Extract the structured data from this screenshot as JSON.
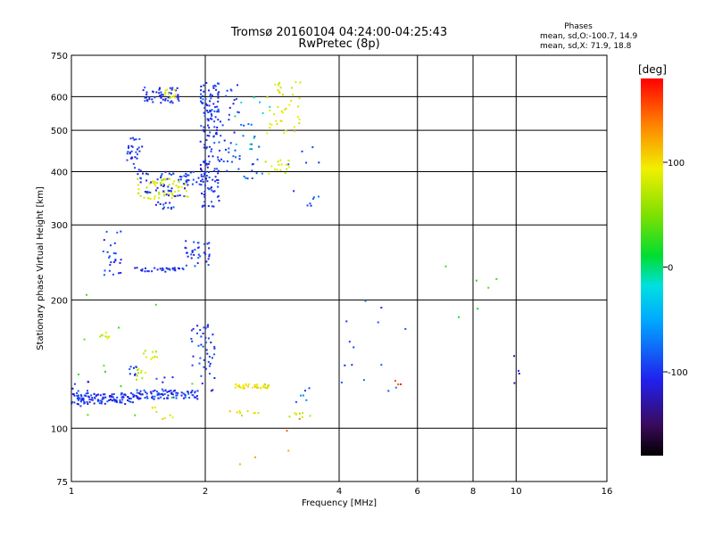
{
  "title_line1": "Tromsø 20160104 04:24:00-04:25:43",
  "title_line2": "RwPretec (8p)",
  "stats": {
    "heading": "Phases",
    "o_line": "mean, sd,O:-100.7, 14.9",
    "x_line": "mean, sd,X:  71.9, 18.8"
  },
  "chart_data": {
    "type": "scatter",
    "xlabel": "Frequency [MHz]",
    "ylabel": "Stationary phase Virtual Height [km]",
    "xscale": "log",
    "yscale": "log",
    "xlim": [
      1,
      16
    ],
    "ylim": [
      75,
      750
    ],
    "x_ticks": [
      {
        "value": 1,
        "label": "1"
      },
      {
        "value": 2,
        "label": "2"
      },
      {
        "value": 4,
        "label": "4"
      },
      {
        "value": 6,
        "label": "6"
      },
      {
        "value": 8,
        "label": "8"
      },
      {
        "value": 10,
        "label": "10"
      },
      {
        "value": 16,
        "label": "16"
      }
    ],
    "y_ticks": [
      {
        "value": 75,
        "label": "75"
      },
      {
        "value": 100,
        "label": "100"
      },
      {
        "value": 200,
        "label": "200"
      },
      {
        "value": 300,
        "label": "300"
      },
      {
        "value": 400,
        "label": "400"
      },
      {
        "value": 500,
        "label": "500"
      },
      {
        "value": 600,
        "label": "600"
      },
      {
        "value": 750,
        "label": "750"
      }
    ],
    "grid": true,
    "colorbar": {
      "label": "[deg]",
      "range": [
        -180,
        180
      ],
      "ticks": [
        {
          "value": 100,
          "label": "100"
        },
        {
          "value": 0,
          "label": "0"
        },
        {
          "value": -100,
          "label": "-100"
        }
      ]
    },
    "clusters": [
      {
        "f": [
          1.0,
          1.38
        ],
        "h": [
          114,
          121
        ],
        "phase": -100,
        "n": 110
      },
      {
        "f": [
          1.38,
          1.95
        ],
        "h": [
          117,
          123
        ],
        "phase": -100,
        "n": 90
      },
      {
        "f": [
          1.85,
          2.1
        ],
        "h": [
          122,
          175
        ],
        "phase": -100,
        "n": 45
      },
      {
        "f": [
          1.0,
          1.1
        ],
        "h": [
          112,
          130
        ],
        "phase": -100,
        "n": 15
      },
      {
        "f": [
          1.15,
          1.22
        ],
        "h": [
          162,
          168
        ],
        "phase": 75,
        "n": 8
      },
      {
        "f": [
          1.38,
          1.47
        ],
        "h": [
          130,
          138
        ],
        "phase": 70,
        "n": 10
      },
      {
        "f": [
          1.45,
          1.58
        ],
        "h": [
          145,
          152
        ],
        "phase": 80,
        "n": 10
      },
      {
        "f": [
          1.35,
          1.4
        ],
        "h": [
          133,
          140
        ],
        "phase": -95,
        "n": 8
      },
      {
        "f": [
          1.55,
          1.7
        ],
        "h": [
          120,
          132
        ],
        "phase": -100,
        "n": 10
      },
      {
        "f": [
          1.5,
          1.7
        ],
        "h": [
          105,
          112
        ],
        "phase": 90,
        "n": 8
      },
      {
        "f": [
          2.3,
          2.8
        ],
        "h": [
          124,
          127
        ],
        "phase": 95,
        "n": 35
      },
      {
        "f": [
          2.35,
          2.7
        ],
        "h": [
          106,
          110
        ],
        "phase": 90,
        "n": 8
      },
      {
        "f": [
          3.0,
          3.5
        ],
        "h": [
          106,
          110
        ],
        "phase": 85,
        "n": 8
      },
      {
        "f": [
          3.2,
          3.45
        ],
        "h": [
          115,
          125
        ],
        "phase": -80,
        "n": 6
      },
      {
        "f": [
          1.18,
          1.3
        ],
        "h": [
          228,
          290
        ],
        "phase": -100,
        "n": 25
      },
      {
        "f": [
          1.35,
          1.8
        ],
        "h": [
          233,
          238
        ],
        "phase": -100,
        "n": 30
      },
      {
        "f": [
          1.8,
          2.05
        ],
        "h": [
          240,
          275
        ],
        "phase": -100,
        "n": 35
      },
      {
        "f": [
          1.33,
          1.45
        ],
        "h": [
          400,
          480
        ],
        "phase": -100,
        "n": 30
      },
      {
        "f": [
          1.4,
          1.85
        ],
        "h": [
          345,
          385
        ],
        "phase": 85,
        "n": 60
      },
      {
        "f": [
          1.4,
          1.85
        ],
        "h": [
          350,
          400
        ],
        "phase": -100,
        "n": 50
      },
      {
        "f": [
          1.55,
          1.7
        ],
        "h": [
          325,
          340
        ],
        "phase": -100,
        "n": 12
      },
      {
        "f": [
          1.75,
          2.0
        ],
        "h": [
          370,
          400
        ],
        "phase": -100,
        "n": 20
      },
      {
        "f": [
          1.45,
          1.75
        ],
        "h": [
          580,
          630
        ],
        "phase": -100,
        "n": 50
      },
      {
        "f": [
          1.58,
          1.72
        ],
        "h": [
          595,
          625
        ],
        "phase": 85,
        "n": 12
      },
      {
        "f": [
          1.95,
          2.15
        ],
        "h": [
          330,
          650
        ],
        "phase": -100,
        "n": 160
      },
      {
        "f": [
          2.15,
          2.4
        ],
        "h": [
          400,
          640
        ],
        "phase": -100,
        "n": 35
      },
      {
        "f": [
          2.4,
          2.7
        ],
        "h": [
          380,
          520
        ],
        "phase": -85,
        "n": 20
      },
      {
        "f": [
          2.75,
          3.3
        ],
        "h": [
          490,
          650
        ],
        "phase": 90,
        "n": 40
      },
      {
        "f": [
          2.7,
          3.1
        ],
        "h": [
          390,
          430
        ],
        "phase": 85,
        "n": 15
      },
      {
        "f": [
          2.3,
          2.8
        ],
        "h": [
          420,
          630
        ],
        "phase": -20,
        "n": 10
      },
      {
        "f": [
          3.0,
          3.7
        ],
        "h": [
          330,
          460
        ],
        "phase": -90,
        "n": 12
      },
      {
        "f": [
          4.0,
          6.0
        ],
        "h": [
          120,
          200
        ],
        "phase": -90,
        "n": 14
      },
      {
        "f": [
          5.3,
          5.6
        ],
        "h": [
          125,
          130
        ],
        "phase": 150,
        "n": 3
      },
      {
        "f": [
          6.2,
          11.0
        ],
        "h": [
          160,
          250
        ],
        "phase": 30,
        "n": 6
      },
      {
        "f": [
          9.9,
          10.5
        ],
        "h": [
          125,
          165
        ],
        "phase": -120,
        "n": 4
      },
      {
        "f": [
          1.0,
          2.0
        ],
        "h": [
          95,
          220
        ],
        "phase": 40,
        "n": 12
      },
      {
        "f": [
          2.0,
          3.6
        ],
        "h": [
          80,
          110
        ],
        "phase": 130,
        "n": 6
      }
    ]
  }
}
